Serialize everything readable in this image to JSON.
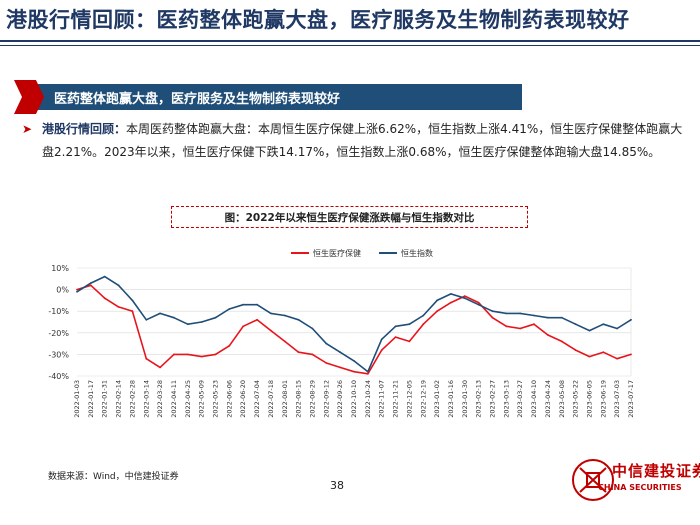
{
  "header": {
    "title": "港股行情回顾：医药整体跑赢大盘，医疗服务及生物制药表现较好"
  },
  "banner": {
    "text": "医药整体跑赢大盘，医疗服务及生物制药表现较好"
  },
  "body": {
    "lead": "港股行情回顾：",
    "text": "本周医药整体跑赢大盘：本周恒生医疗保健上涨6.62%，恒生指数上涨4.41%，恒生医疗保健整体跑赢大盘2.21%。2023年以来，恒生医疗保健下跌14.17%，恒生指数上涨0.68%，恒生医疗保健整体跑输大盘14.85%。"
  },
  "chart_title": "图：2022年以来恒生医疗保健涨跌幅与恒生指数对比",
  "footer": {
    "source": "数据来源：Wind，中信建投证券",
    "page": "38"
  },
  "logo": {
    "cn": "中信建投证券",
    "en": "CHINA SECURITIES"
  },
  "colors": {
    "navy": "#1f3864",
    "banner": "#1f4e79",
    "red": "#e8141c",
    "blue": "#1f4e79"
  },
  "chart_data": {
    "type": "line",
    "ylim": [
      -40,
      10
    ],
    "yticks": [
      "10%",
      "0%",
      "-10%",
      "-20%",
      "-30%",
      "-40%"
    ],
    "x": [
      "2022-01-03",
      "2022-01-17",
      "2022-01-31",
      "2022-02-14",
      "2022-02-28",
      "2022-03-14",
      "2022-03-28",
      "2022-04-11",
      "2022-04-25",
      "2022-05-09",
      "2022-05-23",
      "2022-06-06",
      "2022-06-20",
      "2022-07-04",
      "2022-07-18",
      "2022-08-01",
      "2022-08-15",
      "2022-08-29",
      "2022-09-12",
      "2022-09-26",
      "2022-10-10",
      "2022-10-24",
      "2022-11-07",
      "2022-11-21",
      "2022-12-05",
      "2022-12-19",
      "2023-01-02",
      "2023-01-16",
      "2023-01-30",
      "2023-02-13",
      "2023-02-27",
      "2023-03-13",
      "2023-03-27",
      "2023-04-10",
      "2023-04-24",
      "2023-05-08",
      "2023-05-22",
      "2023-06-05",
      "2023-06-19",
      "2023-07-03",
      "2023-07-17"
    ],
    "xlabels": [
      "2022-01-03",
      "2022-01-17",
      "2022-01-31",
      "2022-02-14",
      "2022-02-28",
      "2022-03-14",
      "2022-03-28",
      "2022-04-11",
      "2022-04-25",
      "2022-05-09",
      "2022-05-23",
      "2022-06-06",
      "2022-06-20",
      "2022-07-04",
      "2022-07-18",
      "2022-08-01",
      "2022-08-15",
      "2022-08-29",
      "2022-09-12",
      "2022-09-26",
      "2022-10-10",
      "2022-10-24",
      "2022-11-07",
      "2022-11-21",
      "2022-12-05",
      "2022-12-19",
      "2023-01-02",
      "2023-01-16",
      "2023-01-30",
      "2023-02-13",
      "2023-02-27",
      "2023-03-13",
      "2023-03-27",
      "2023-04-10",
      "2023-04-24",
      "2023-05-08",
      "2023-05-22",
      "2023-06-05",
      "2023-06-19",
      "2023-07-03",
      "2023-07-17"
    ],
    "series": [
      {
        "name": "恒生医疗保健",
        "color": "#e8141c",
        "values": [
          0,
          2,
          -4,
          -8,
          -10,
          -32,
          -36,
          -30,
          -30,
          -31,
          -30,
          -26,
          -17,
          -14,
          -19,
          -24,
          -29,
          -30,
          -34,
          -36,
          -38,
          -39,
          -28,
          -22,
          -24,
          -16,
          -10,
          -6,
          -3,
          -6,
          -13,
          -17,
          -18,
          -16,
          -21,
          -24,
          -28,
          -31,
          -29,
          -32,
          -30
        ]
      },
      {
        "name": "恒生指数",
        "color": "#1f4e79",
        "values": [
          -1,
          3,
          6,
          2,
          -5,
          -14,
          -11,
          -13,
          -16,
          -15,
          -13,
          -9,
          -7,
          -7,
          -11,
          -12,
          -14,
          -18,
          -25,
          -29,
          -33,
          -38,
          -23,
          -17,
          -16,
          -12,
          -5,
          -2,
          -4,
          -7,
          -10,
          -11,
          -11,
          -12,
          -13,
          -13,
          -16,
          -19,
          -16,
          -18,
          -14
        ]
      }
    ]
  }
}
